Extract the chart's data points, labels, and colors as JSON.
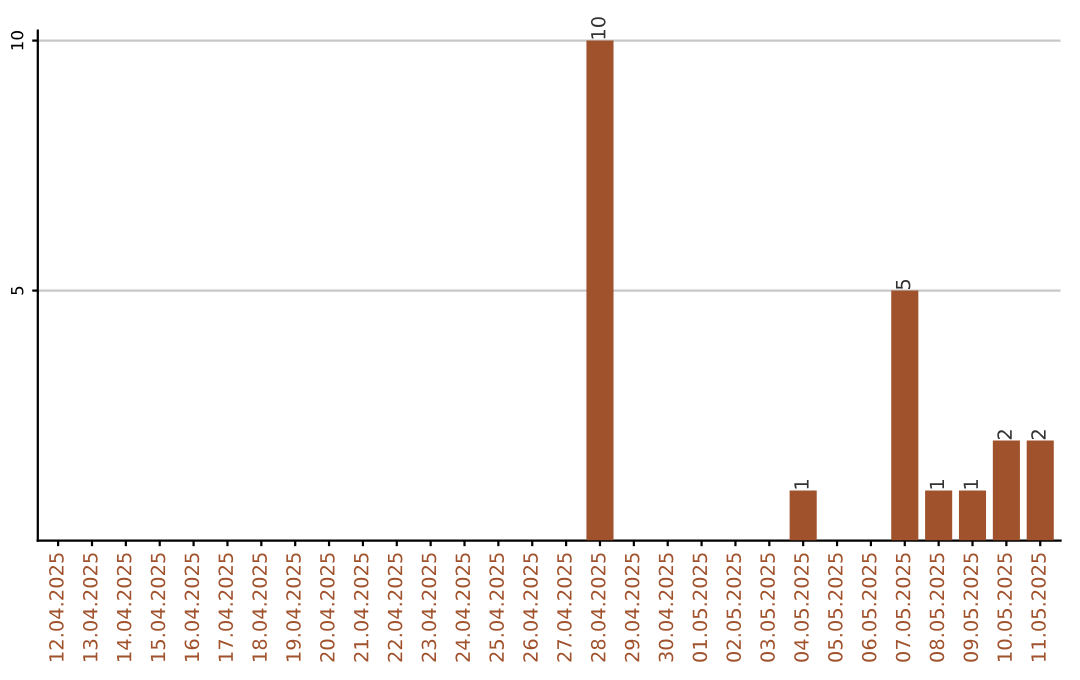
{
  "chart_data": {
    "type": "bar",
    "categories": [
      "12.04.2025",
      "13.04.2025",
      "14.04.2025",
      "15.04.2025",
      "16.04.2025",
      "17.04.2025",
      "18.04.2025",
      "19.04.2025",
      "20.04.2025",
      "21.04.2025",
      "22.04.2025",
      "23.04.2025",
      "24.04.2025",
      "25.04.2025",
      "26.04.2025",
      "27.04.2025",
      "28.04.2025",
      "29.04.2025",
      "30.04.2025",
      "01.05.2025",
      "02.05.2025",
      "03.05.2025",
      "04.05.2025",
      "05.05.2025",
      "06.05.2025",
      "07.05.2025",
      "08.05.2025",
      "09.05.2025",
      "10.05.2025",
      "11.05.2025"
    ],
    "values": [
      0,
      0,
      0,
      0,
      0,
      0,
      0,
      0,
      0,
      0,
      0,
      0,
      0,
      0,
      0,
      0,
      10,
      0,
      0,
      0,
      0,
      0,
      1,
      0,
      0,
      5,
      1,
      1,
      2,
      2
    ],
    "value_labels": [
      null,
      null,
      null,
      null,
      null,
      null,
      null,
      null,
      null,
      null,
      null,
      null,
      null,
      null,
      null,
      null,
      "10",
      null,
      null,
      null,
      null,
      null,
      "1",
      null,
      null,
      "5",
      "1",
      "1",
      "2",
      "2"
    ],
    "color": "#a0522d",
    "ylim": [
      0,
      10
    ],
    "yticks": [
      5,
      10
    ],
    "grid": "y",
    "legend": false
  }
}
